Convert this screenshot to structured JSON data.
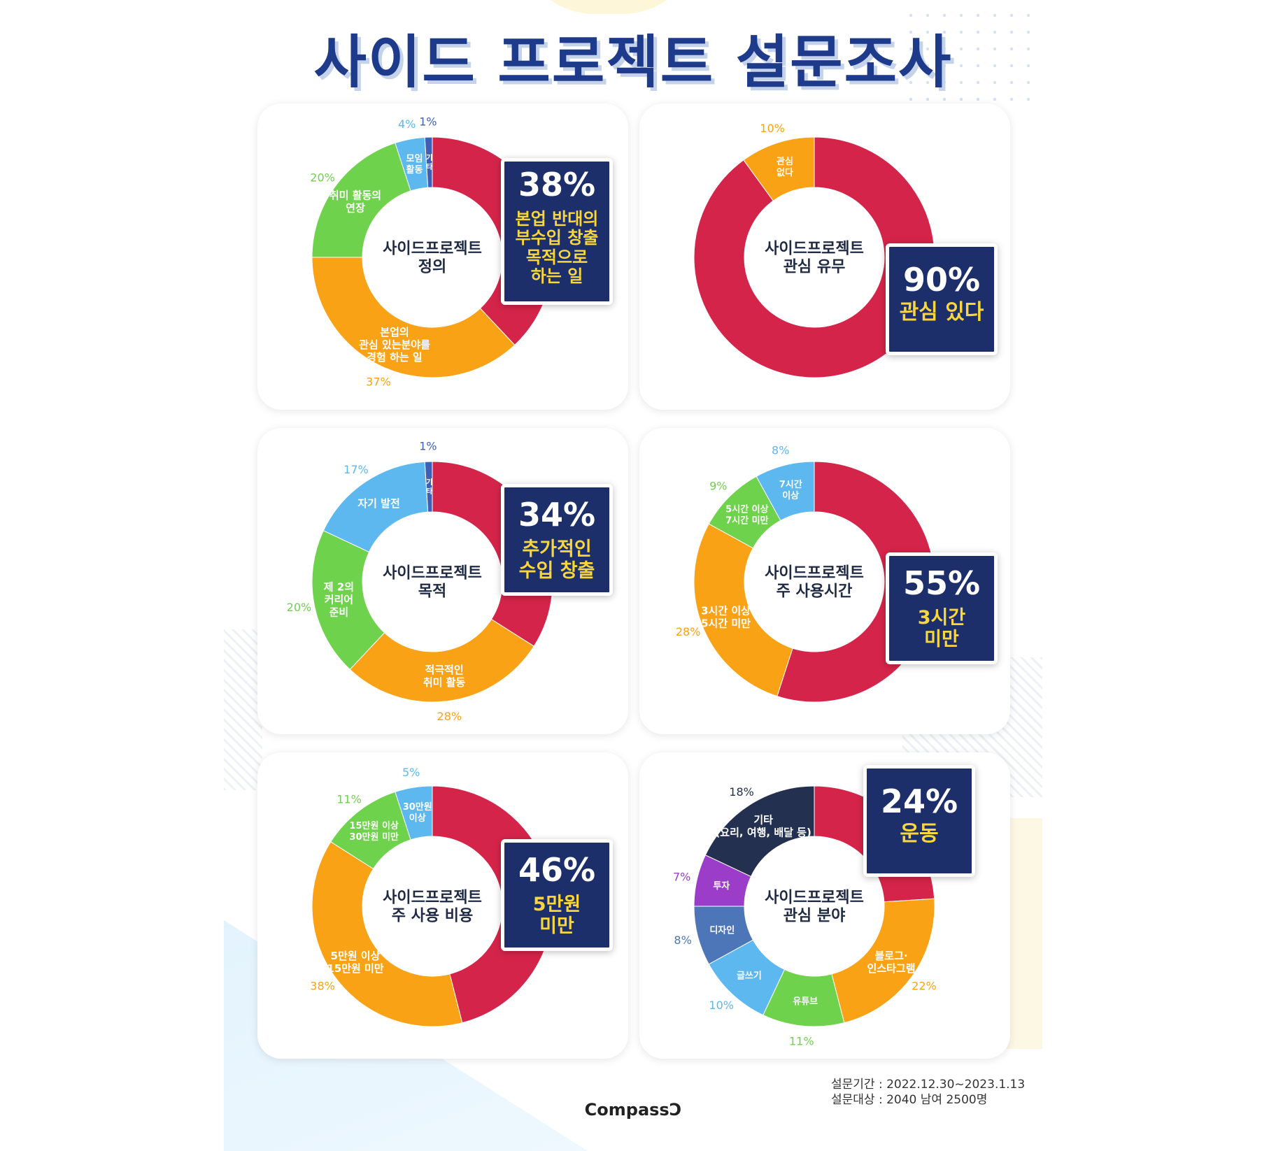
{
  "title": "사이드 프로젝트 설문조사",
  "colors": {
    "red": "#d5244a",
    "orange": "#f9a215",
    "green": "#6fd24c",
    "lightblue": "#5db8ef",
    "darkblue": "#3e5fb4",
    "navy": "#24304f",
    "purple": "#9b3dc9",
    "steel": "#4d76b8",
    "callout_bg": "#1c2f6b",
    "callout_text": "#f9d63b",
    "title": "#1e3a8a"
  },
  "chart_data": [
    {
      "type": "pie",
      "center_label": "사이드프로젝트\n정의",
      "slices": [
        {
          "label": "본업 반대의 부수입 창출 목적으로 하는 일",
          "value": 38,
          "color": "#d5244a"
        },
        {
          "label": "본업의\n관심 있는분야를\n경험 하는 일",
          "value": 37,
          "color": "#f9a215"
        },
        {
          "label": "취미 활동의\n연장",
          "value": 20,
          "color": "#6fd24c"
        },
        {
          "label": "모임\n활동",
          "value": 4,
          "color": "#5db8ef"
        },
        {
          "label": "기\n타",
          "value": 1,
          "color": "#3e5fb4"
        }
      ],
      "callout": {
        "pct": "38%",
        "desc": "본업 반대의\n부수입 창출\n목적으로\n하는 일"
      }
    },
    {
      "type": "pie",
      "center_label": "사이드프로젝트\n관심 유무",
      "slices": [
        {
          "label": "관심 있다",
          "value": 90,
          "color": "#d5244a"
        },
        {
          "label": "관심\n없다",
          "value": 10,
          "color": "#f9a215"
        }
      ],
      "callout": {
        "pct": "90%",
        "desc": "관심 있다"
      }
    },
    {
      "type": "pie",
      "center_label": "사이드프로젝트\n목적",
      "slices": [
        {
          "label": "추가적인 수입 창출",
          "value": 34,
          "color": "#d5244a"
        },
        {
          "label": "적극적인\n취미 활동",
          "value": 28,
          "color": "#f9a215"
        },
        {
          "label": "제 2의\n커리어\n준비",
          "value": 20,
          "color": "#6fd24c"
        },
        {
          "label": "자기 발전",
          "value": 17,
          "color": "#5db8ef"
        },
        {
          "label": "기\n타",
          "value": 1,
          "color": "#3e5fb4"
        }
      ],
      "callout": {
        "pct": "34%",
        "desc": "추가적인\n수입 창출"
      }
    },
    {
      "type": "pie",
      "center_label": "사이드프로젝트\n주 사용시간",
      "slices": [
        {
          "label": "3시간 미만",
          "value": 55,
          "color": "#d5244a"
        },
        {
          "label": "3시간 이상\n5시간 미만",
          "value": 28,
          "color": "#f9a215"
        },
        {
          "label": "5시간 이상\n7시간 미만",
          "value": 9,
          "color": "#6fd24c"
        },
        {
          "label": "7시간\n이상",
          "value": 8,
          "color": "#5db8ef"
        }
      ],
      "callout": {
        "pct": "55%",
        "desc": "3시간\n미만"
      }
    },
    {
      "type": "pie",
      "center_label": "사이드프로젝트\n주 사용 비용",
      "slices": [
        {
          "label": "5만원 미만",
          "value": 46,
          "color": "#d5244a"
        },
        {
          "label": "5만원 이상\n15만원 미만",
          "value": 38,
          "color": "#f9a215"
        },
        {
          "label": "15만원 이상\n30만원 미만",
          "value": 11,
          "color": "#6fd24c"
        },
        {
          "label": "30만원\n이상",
          "value": 5,
          "color": "#5db8ef"
        }
      ],
      "callout": {
        "pct": "46%",
        "desc": "5만원\n미만"
      }
    },
    {
      "type": "pie",
      "center_label": "사이드프로젝트\n관심 분야",
      "slices": [
        {
          "label": "운동",
          "value": 24,
          "color": "#d5244a"
        },
        {
          "label": "블로그·\n인스타그램",
          "value": 22,
          "color": "#f9a215"
        },
        {
          "label": "유튜브",
          "value": 11,
          "color": "#6fd24c"
        },
        {
          "label": "글쓰기",
          "value": 10,
          "color": "#5db8ef"
        },
        {
          "label": "디자인",
          "value": 8,
          "color": "#4d76b8"
        },
        {
          "label": "투자",
          "value": 7,
          "color": "#9b3dc9"
        },
        {
          "label": "기타\n(요리, 여행, 배달 등)",
          "value": 18,
          "color": "#24304f"
        }
      ],
      "callout": {
        "pct": "24%",
        "desc": "운동"
      }
    }
  ],
  "footer": {
    "period": "설문기간 : 2022.12.30~2023.1.13",
    "target": "설문대상 : 2040 남여 2500명",
    "logo": "CompassƆ"
  }
}
